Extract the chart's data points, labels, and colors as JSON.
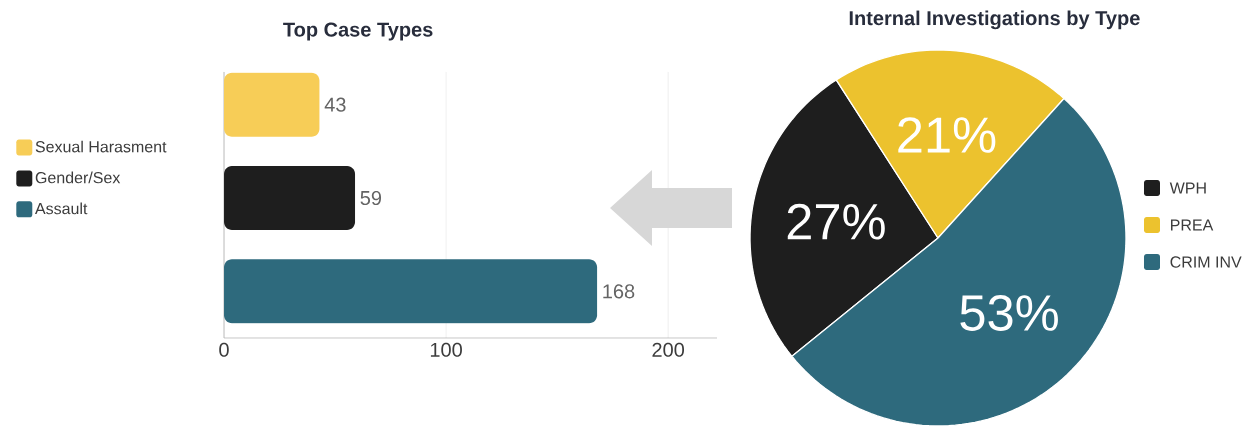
{
  "chart_data": [
    {
      "type": "bar",
      "orientation": "horizontal",
      "title": "Top Case Types",
      "categories": [
        null,
        null,
        null
      ],
      "series": [
        {
          "name": "Sexual Harasment",
          "color": "#f7cd57",
          "values": [
            43,
            null,
            null
          ]
        },
        {
          "name": "Gender/Sex",
          "color": "#1e1e1e",
          "values": [
            null,
            59,
            null
          ]
        },
        {
          "name": "Assault",
          "color": "#2e6a7d",
          "values": [
            null,
            null,
            168
          ]
        }
      ],
      "xlim": [
        0,
        222
      ],
      "xticks": [
        0,
        100,
        200
      ],
      "grid": "x",
      "legend": "left",
      "data_labels": true,
      "tick_labels": "x"
    },
    {
      "type": "pie",
      "title": "Internal Investigations by Type",
      "categories": [
        "WPH",
        "PREA",
        "CRIM INV"
      ],
      "values": [
        27,
        21,
        53
      ],
      "value_labels": [
        "27%",
        "21%",
        "53%"
      ],
      "colors": [
        "#1e1e1e",
        "#ecc22e",
        "#2e6a7d"
      ],
      "legend": "right"
    }
  ]
}
